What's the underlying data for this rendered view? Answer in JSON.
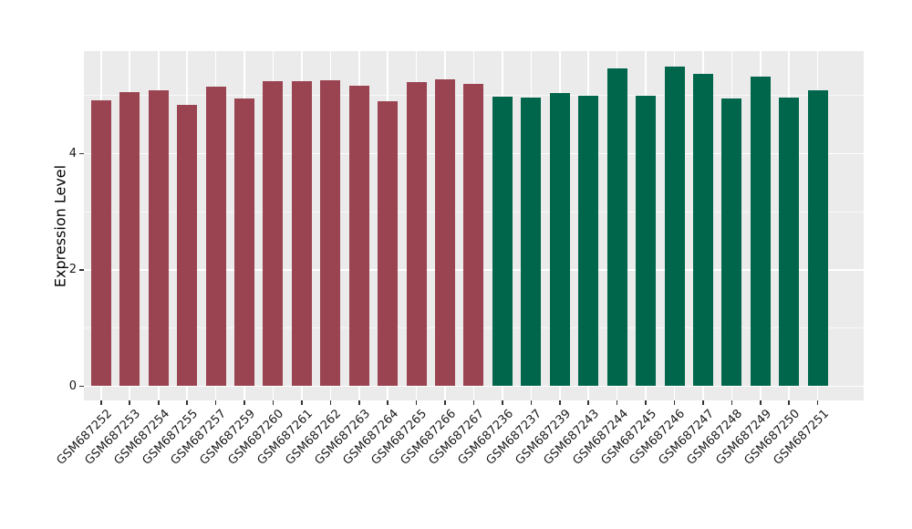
{
  "chart_data": {
    "type": "bar",
    "title": "",
    "xlabel": "",
    "ylabel": "Expression Level",
    "ylim": [
      0,
      5.76
    ],
    "yticks": [
      0,
      2,
      4
    ],
    "yticks_minor": [
      1,
      3,
      5
    ],
    "legend_position": "none",
    "grid": {
      "enabled": true,
      "color": "#FFFFFF",
      "panel_background": "#EBEBEB"
    },
    "group_colors": {
      "left_group": "#9A4452",
      "right_group": "#00664B"
    },
    "categories": [
      "GSM687252",
      "GSM687253",
      "GSM687254",
      "GSM687255",
      "GSM687257",
      "GSM687259",
      "GSM687260",
      "GSM687261",
      "GSM687262",
      "GSM687263",
      "GSM687264",
      "GSM687265",
      "GSM687266",
      "GSM687267",
      "GSM687236",
      "GSM687237",
      "GSM687239",
      "GSM687243",
      "GSM687244",
      "GSM687245",
      "GSM687246",
      "GSM687247",
      "GSM687248",
      "GSM687249",
      "GSM687250",
      "GSM687251"
    ],
    "samples": [
      {
        "label": "GSM687252",
        "value": 4.91,
        "group": "left_group"
      },
      {
        "label": "GSM687253",
        "value": 5.06,
        "group": "left_group"
      },
      {
        "label": "GSM687254",
        "value": 5.08,
        "group": "left_group"
      },
      {
        "label": "GSM687255",
        "value": 4.84,
        "group": "left_group"
      },
      {
        "label": "GSM687257",
        "value": 5.15,
        "group": "left_group"
      },
      {
        "label": "GSM687259",
        "value": 4.95,
        "group": "left_group"
      },
      {
        "label": "GSM687260",
        "value": 5.24,
        "group": "left_group"
      },
      {
        "label": "GSM687261",
        "value": 5.25,
        "group": "left_group"
      },
      {
        "label": "GSM687262",
        "value": 5.26,
        "group": "left_group"
      },
      {
        "label": "GSM687263",
        "value": 5.16,
        "group": "left_group"
      },
      {
        "label": "GSM687264",
        "value": 4.9,
        "group": "left_group"
      },
      {
        "label": "GSM687265",
        "value": 5.23,
        "group": "left_group"
      },
      {
        "label": "GSM687266",
        "value": 5.27,
        "group": "left_group"
      },
      {
        "label": "GSM687267",
        "value": 5.19,
        "group": "left_group"
      },
      {
        "label": "GSM687236",
        "value": 4.98,
        "group": "right_group"
      },
      {
        "label": "GSM687237",
        "value": 4.96,
        "group": "right_group"
      },
      {
        "label": "GSM687239",
        "value": 5.04,
        "group": "right_group"
      },
      {
        "label": "GSM687243",
        "value": 5.0,
        "group": "right_group"
      },
      {
        "label": "GSM687244",
        "value": 5.47,
        "group": "right_group"
      },
      {
        "label": "GSM687245",
        "value": 4.99,
        "group": "right_group"
      },
      {
        "label": "GSM687246",
        "value": 5.49,
        "group": "right_group"
      },
      {
        "label": "GSM687247",
        "value": 5.37,
        "group": "right_group"
      },
      {
        "label": "GSM687248",
        "value": 4.95,
        "group": "right_group"
      },
      {
        "label": "GSM687249",
        "value": 5.33,
        "group": "right_group"
      },
      {
        "label": "GSM687250",
        "value": 4.96,
        "group": "right_group"
      },
      {
        "label": "GSM687251",
        "value": 5.08,
        "group": "right_group"
      }
    ]
  },
  "axis": {
    "y_tick_labels": [
      "0",
      "2",
      "4"
    ],
    "y_title": "Expression Level"
  },
  "colors": {
    "figure_background": "#FFFFFF",
    "panel_background": "#EBEBEB",
    "gridline": "#FFFFFF",
    "bar_maroon": "#9A4452",
    "bar_green": "#00664B",
    "tick_text": "#1A1A1A",
    "tick_mark": "#333333"
  }
}
